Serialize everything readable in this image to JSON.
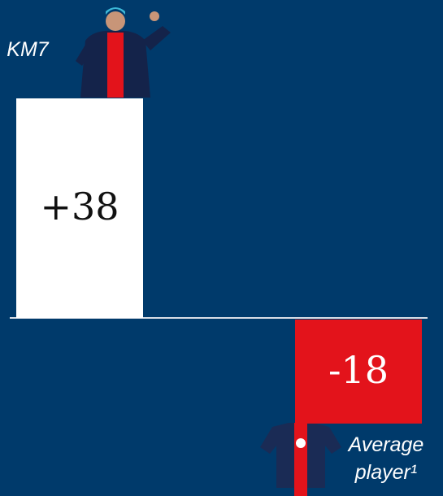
{
  "chart_data": {
    "type": "bar",
    "categories": [
      "KM7",
      "Average player¹"
    ],
    "values": [
      38,
      -18
    ],
    "value_labels": [
      "+38",
      "-18"
    ],
    "colors": [
      "#ffffff",
      "#e3131b"
    ]
  }
}
